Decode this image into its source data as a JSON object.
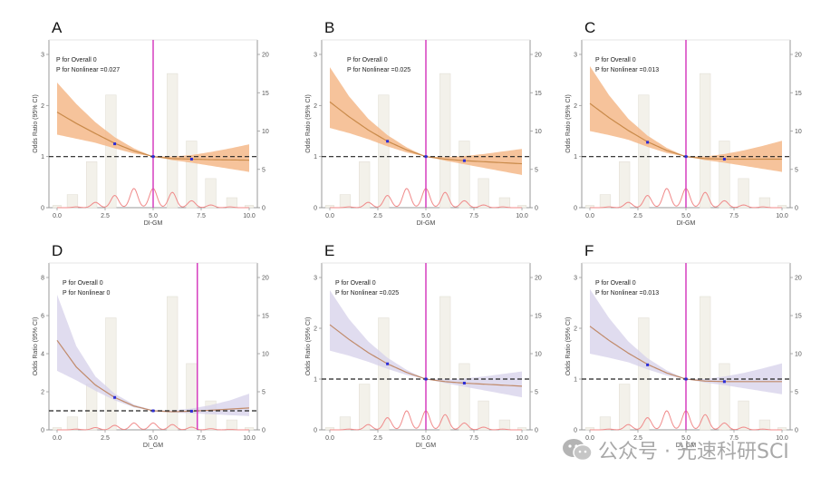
{
  "figure": {
    "watermark": {
      "text": "公众号 · 光速科研SCI",
      "icon": "wechat-icon"
    }
  },
  "colors": {
    "orange_band": "#f5b88a",
    "orange_line": "#c98a4a",
    "purple_band": "#d6d0ea",
    "purple_line": "#c08a6a",
    "ref_vline": "#d63fbf",
    "hline": "#222222",
    "density": "#f08a8a",
    "hist_fill": "#f3f1ea",
    "hist_stroke": "#e3e0d6",
    "point": "#2b2bd6",
    "frame": "#9a9a9a"
  },
  "chart_data": [
    {
      "panel": "A",
      "type": "line",
      "theme": "orange",
      "xlabel": "DI-GM",
      "ylabel": "Odds Ratio (95% CI)",
      "xlim": [
        0,
        10
      ],
      "ylim": [
        0,
        3
      ],
      "y2lim": [
        0,
        20
      ],
      "xticks": [
        "0.0",
        "2.5",
        "5.0",
        "7.5",
        "10.0"
      ],
      "xtick_values": [
        0,
        2.5,
        5,
        7.5,
        10
      ],
      "yticks": [
        "0",
        "1",
        "2",
        "3"
      ],
      "ytick_values": [
        0,
        1,
        2,
        3
      ],
      "y2ticks": [
        "0",
        "5",
        "10",
        "15",
        "20"
      ],
      "y2tick_values": [
        0,
        5,
        10,
        15,
        20
      ],
      "annotations": [
        "P for Overall 0",
        "P for Nonlinear =0.027"
      ],
      "ref_x": 5.0,
      "ref_y": 1,
      "spline": {
        "x": [
          0,
          1,
          2,
          3,
          4,
          5,
          6,
          7,
          8,
          9,
          10
        ],
        "or": [
          1.87,
          1.65,
          1.45,
          1.26,
          1.11,
          1.0,
          0.96,
          0.95,
          0.94,
          0.935,
          0.93
        ],
        "lower": [
          1.43,
          1.35,
          1.27,
          1.16,
          1.06,
          1.0,
          0.93,
          0.88,
          0.82,
          0.76,
          0.7
        ],
        "upper": [
          2.45,
          2.03,
          1.67,
          1.38,
          1.16,
          1.0,
          1.0,
          1.03,
          1.09,
          1.16,
          1.24
        ]
      },
      "points": [
        {
          "x": 3,
          "y": 1.25
        },
        {
          "x": 5,
          "y": 1.0
        },
        {
          "x": 7,
          "y": 0.95
        }
      ],
      "histogram": {
        "x": [
          0,
          0.8,
          1.8,
          2.8,
          6.0,
          7.0,
          8.0,
          9.1,
          10.0
        ],
        "counts": [
          0.3,
          1.7,
          6.0,
          14.7,
          17.5,
          8.7,
          3.8,
          1.3,
          0.3
        ]
      },
      "density_peaks": {
        "x": [
          1,
          2,
          3,
          4,
          5,
          6,
          7,
          8,
          9
        ],
        "values": [
          0.1,
          0.7,
          1.6,
          2.5,
          2.5,
          2.0,
          0.9,
          0.35,
          0.1
        ]
      }
    },
    {
      "panel": "B",
      "type": "line",
      "theme": "orange",
      "xlabel": "DI-GM",
      "ylabel": "Odds Ratio (95% CI)",
      "xlim": [
        0,
        10
      ],
      "ylim": [
        0,
        3
      ],
      "y2lim": [
        0,
        20
      ],
      "xticks": [
        "0.0",
        "2.5",
        "5.0",
        "7.5",
        "10.0"
      ],
      "xtick_values": [
        0,
        2.5,
        5,
        7.5,
        10
      ],
      "yticks": [
        "0",
        "1",
        "2",
        "3"
      ],
      "ytick_values": [
        0,
        1,
        2,
        3
      ],
      "y2ticks": [
        "0",
        "5",
        "10",
        "15",
        "20"
      ],
      "y2tick_values": [
        0,
        5,
        10,
        15,
        20
      ],
      "annotations": [
        "P for Overall 0",
        "P for Nonlinear =0.025"
      ],
      "ref_x": 5.0,
      "ref_y": 1,
      "spline": {
        "x": [
          0,
          1,
          2,
          3,
          4,
          5,
          6,
          7,
          8,
          9,
          10
        ],
        "or": [
          2.07,
          1.78,
          1.52,
          1.3,
          1.13,
          1.0,
          0.95,
          0.92,
          0.9,
          0.88,
          0.86
        ],
        "lower": [
          1.56,
          1.46,
          1.34,
          1.2,
          1.08,
          1.0,
          0.92,
          0.85,
          0.78,
          0.71,
          0.64
        ],
        "upper": [
          2.75,
          2.18,
          1.74,
          1.42,
          1.18,
          1.0,
          0.99,
          1.01,
          1.05,
          1.1,
          1.15
        ]
      },
      "points": [
        {
          "x": 3,
          "y": 1.3
        },
        {
          "x": 5,
          "y": 1.0
        },
        {
          "x": 7,
          "y": 0.92
        }
      ],
      "histogram": {
        "x": [
          0,
          0.8,
          1.8,
          2.8,
          6.0,
          7.0,
          8.0,
          9.1,
          10.0
        ],
        "counts": [
          0.3,
          1.7,
          6.0,
          14.7,
          17.5,
          8.7,
          3.8,
          1.3,
          0.3
        ]
      },
      "density_peaks": {
        "x": [
          1,
          2,
          3,
          4,
          5,
          6,
          7,
          8,
          9
        ],
        "values": [
          0.1,
          0.7,
          1.6,
          2.5,
          2.5,
          2.0,
          0.9,
          0.35,
          0.1
        ]
      }
    },
    {
      "panel": "C",
      "type": "line",
      "theme": "orange",
      "xlabel": "DI-GM",
      "ylabel": "Odds Ratio (95% CI)",
      "xlim": [
        0,
        10
      ],
      "ylim": [
        0,
        3
      ],
      "y2lim": [
        0,
        20
      ],
      "xticks": [
        "0.0",
        "2.5",
        "5.0",
        "7.5",
        "10.0"
      ],
      "xtick_values": [
        0,
        2.5,
        5,
        7.5,
        10
      ],
      "yticks": [
        "0",
        "1",
        "2",
        "3"
      ],
      "ytick_values": [
        0,
        1,
        2,
        3
      ],
      "y2ticks": [
        "0",
        "5",
        "10",
        "15",
        "20"
      ],
      "y2tick_values": [
        0,
        5,
        10,
        15,
        20
      ],
      "annotations": [
        "P for Overall 0",
        "P for Nonlinear =0.013"
      ],
      "ref_x": 5.0,
      "ref_y": 1,
      "spline": {
        "x": [
          0,
          1,
          2,
          3,
          4,
          5,
          6,
          7,
          8,
          9,
          10
        ],
        "or": [
          2.04,
          1.76,
          1.51,
          1.29,
          1.12,
          1.0,
          0.96,
          0.95,
          0.95,
          0.95,
          0.95
        ],
        "lower": [
          1.5,
          1.42,
          1.33,
          1.19,
          1.07,
          1.0,
          0.93,
          0.88,
          0.82,
          0.76,
          0.7
        ],
        "upper": [
          2.77,
          2.2,
          1.74,
          1.41,
          1.17,
          1.0,
          1.0,
          1.05,
          1.12,
          1.21,
          1.31
        ]
      },
      "points": [
        {
          "x": 3,
          "y": 1.28
        },
        {
          "x": 5,
          "y": 1.0
        },
        {
          "x": 7,
          "y": 0.95
        }
      ],
      "histogram": {
        "x": [
          0,
          0.8,
          1.8,
          2.8,
          6.0,
          7.0,
          8.0,
          9.1,
          10.0
        ],
        "counts": [
          0.3,
          1.7,
          6.0,
          14.7,
          17.5,
          8.7,
          3.8,
          1.3,
          0.3
        ]
      },
      "density_peaks": {
        "x": [
          1,
          2,
          3,
          4,
          5,
          6,
          7,
          8,
          9
        ],
        "values": [
          0.1,
          0.7,
          1.6,
          2.5,
          2.5,
          2.0,
          0.9,
          0.35,
          0.1
        ]
      }
    },
    {
      "panel": "D",
      "type": "line",
      "theme": "purple",
      "xlabel": "DI_GM",
      "ylabel": "Odds Ratio (95% CI)",
      "xlim": [
        0,
        10
      ],
      "ylim": [
        0,
        8
      ],
      "y2lim": [
        0,
        20
      ],
      "xticks": [
        "0.0",
        "2.5",
        "5.0",
        "7.5",
        "10.0"
      ],
      "xtick_values": [
        0,
        2.5,
        5,
        7.5,
        10
      ],
      "yticks": [
        "0",
        "2",
        "4",
        "6",
        "8"
      ],
      "ytick_values": [
        0,
        2,
        4,
        6,
        8
      ],
      "y2ticks": [
        "0",
        "5",
        "10",
        "15",
        "20"
      ],
      "y2tick_values": [
        0,
        5,
        10,
        15,
        20
      ],
      "annotations": [
        "P for Overall 0",
        "P for Nonlinear 0"
      ],
      "ref_x": 7.3,
      "ref_y": 1,
      "spline": {
        "x": [
          0,
          1,
          2,
          3,
          4,
          5,
          6,
          7,
          8,
          9,
          10
        ],
        "or": [
          4.7,
          3.3,
          2.35,
          1.7,
          1.25,
          1.0,
          0.95,
          0.98,
          1.03,
          1.09,
          1.15
        ],
        "lower": [
          3.1,
          2.6,
          2.05,
          1.55,
          1.18,
          0.98,
          0.9,
          0.87,
          0.82,
          0.77,
          0.72
        ],
        "upper": [
          7.1,
          4.4,
          2.8,
          1.9,
          1.33,
          1.03,
          1.02,
          1.12,
          1.3,
          1.55,
          1.9
        ]
      },
      "points": [
        {
          "x": 3,
          "y": 1.7
        },
        {
          "x": 5,
          "y": 1.0
        },
        {
          "x": 7,
          "y": 0.98
        }
      ],
      "histogram": {
        "x": [
          0,
          0.8,
          1.8,
          2.8,
          6.0,
          7.0,
          8.0,
          9.1,
          10.0
        ],
        "counts": [
          0.3,
          1.7,
          6.0,
          14.7,
          17.5,
          8.7,
          3.8,
          1.3,
          0.3
        ]
      },
      "density_peaks": {
        "x": [
          1,
          2,
          3,
          4,
          5,
          6,
          7,
          8,
          9
        ],
        "values": [
          0.1,
          0.3,
          0.6,
          0.9,
          0.9,
          0.7,
          0.35,
          0.15,
          0.05
        ]
      }
    },
    {
      "panel": "E",
      "type": "line",
      "theme": "purple",
      "xlabel": "DI_GM",
      "ylabel": "Odds Ratio (95% CI)",
      "xlim": [
        0,
        10
      ],
      "ylim": [
        0,
        3
      ],
      "y2lim": [
        0,
        20
      ],
      "xticks": [
        "0.0",
        "2.5",
        "5.0",
        "7.5",
        "10.0"
      ],
      "xtick_values": [
        0,
        2.5,
        5,
        7.5,
        10
      ],
      "yticks": [
        "0",
        "1",
        "2",
        "3"
      ],
      "ytick_values": [
        0,
        1,
        2,
        3
      ],
      "y2ticks": [
        "0",
        "5",
        "10",
        "15",
        "20"
      ],
      "y2tick_values": [
        0,
        5,
        10,
        15,
        20
      ],
      "annotations": [
        "P for Overall 0",
        "P for Nonlinear =0.025"
      ],
      "ref_x": 5.0,
      "ref_y": 1,
      "spline": {
        "x": [
          0,
          1,
          2,
          3,
          4,
          5,
          6,
          7,
          8,
          9,
          10
        ],
        "or": [
          2.07,
          1.78,
          1.52,
          1.3,
          1.13,
          1.0,
          0.95,
          0.92,
          0.9,
          0.88,
          0.86
        ],
        "lower": [
          1.56,
          1.46,
          1.34,
          1.2,
          1.08,
          1.0,
          0.92,
          0.85,
          0.78,
          0.71,
          0.64
        ],
        "upper": [
          2.75,
          2.18,
          1.74,
          1.42,
          1.18,
          1.0,
          0.99,
          1.01,
          1.05,
          1.1,
          1.15
        ]
      },
      "points": [
        {
          "x": 3,
          "y": 1.3
        },
        {
          "x": 5,
          "y": 1.0
        },
        {
          "x": 7,
          "y": 0.92
        }
      ],
      "histogram": {
        "x": [
          0,
          0.8,
          1.8,
          2.8,
          6.0,
          7.0,
          8.0,
          9.1,
          10.0
        ],
        "counts": [
          0.3,
          1.7,
          6.0,
          14.7,
          17.5,
          8.7,
          3.8,
          1.3,
          0.3
        ]
      },
      "density_peaks": {
        "x": [
          1,
          2,
          3,
          4,
          5,
          6,
          7,
          8,
          9
        ],
        "values": [
          0.1,
          0.7,
          1.6,
          2.5,
          2.5,
          2.0,
          0.9,
          0.35,
          0.1
        ]
      }
    },
    {
      "panel": "F",
      "type": "line",
      "theme": "purple",
      "xlabel": "DI_GM",
      "ylabel": "Odds Ratio (95% CI)",
      "xlim": [
        0,
        10
      ],
      "ylim": [
        0,
        3
      ],
      "y2lim": [
        0,
        20
      ],
      "xticks": [
        "0.0",
        "2.5",
        "5.0",
        "7.5",
        "10.0"
      ],
      "xtick_values": [
        0,
        2.5,
        5,
        7.5,
        10
      ],
      "yticks": [
        "0",
        "1",
        "2",
        "3"
      ],
      "ytick_values": [
        0,
        1,
        2,
        3
      ],
      "y2ticks": [
        "0",
        "5",
        "10",
        "15",
        "20"
      ],
      "y2tick_values": [
        0,
        5,
        10,
        15,
        20
      ],
      "annotations": [
        "P for Overall 0",
        "P for Nonlinear =0.013"
      ],
      "ref_x": 5.0,
      "ref_y": 1,
      "spline": {
        "x": [
          0,
          1,
          2,
          3,
          4,
          5,
          6,
          7,
          8,
          9,
          10
        ],
        "or": [
          2.04,
          1.76,
          1.51,
          1.29,
          1.12,
          1.0,
          0.96,
          0.95,
          0.95,
          0.95,
          0.95
        ],
        "lower": [
          1.5,
          1.42,
          1.33,
          1.19,
          1.07,
          1.0,
          0.93,
          0.88,
          0.82,
          0.76,
          0.7
        ],
        "upper": [
          2.77,
          2.2,
          1.74,
          1.41,
          1.17,
          1.0,
          1.0,
          1.05,
          1.12,
          1.21,
          1.31
        ]
      },
      "points": [
        {
          "x": 3,
          "y": 1.28
        },
        {
          "x": 5,
          "y": 1.0
        },
        {
          "x": 7,
          "y": 0.95
        }
      ],
      "histogram": {
        "x": [
          0,
          0.8,
          1.8,
          2.8,
          6.0,
          7.0,
          8.0,
          9.1,
          10.0
        ],
        "counts": [
          0.3,
          1.7,
          6.0,
          14.7,
          17.5,
          8.7,
          3.8,
          1.3,
          0.3
        ]
      },
      "density_peaks": {
        "x": [
          1,
          2,
          3,
          4,
          5,
          6,
          7,
          8,
          9
        ],
        "values": [
          0.1,
          0.7,
          1.6,
          2.5,
          2.5,
          2.0,
          0.9,
          0.35,
          0.1
        ]
      }
    }
  ]
}
